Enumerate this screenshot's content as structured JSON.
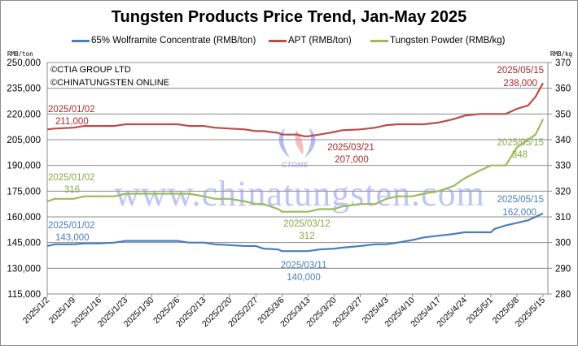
{
  "chart_data": {
    "type": "line",
    "title": "Tungsten Products Price Trend, Jan-May 2025",
    "xlabel": "",
    "ylabel_left": "RMB/ton",
    "ylabel_right": "RMB/kg",
    "ylim_left": [
      115000,
      250000
    ],
    "ylim_right": [
      280,
      370
    ],
    "yticks_left": [
      "115,000",
      "130,000",
      "145,000",
      "160,000",
      "175,000",
      "190,000",
      "205,000",
      "220,000",
      "235,000",
      "250,000"
    ],
    "yticks_right": [
      "280",
      "290",
      "300",
      "310",
      "320",
      "330",
      "340",
      "350",
      "360",
      "370"
    ],
    "grid": true,
    "legend_position": "top",
    "categories": [
      "2025/1/2",
      "2025/1/9",
      "2025/1/16",
      "2025/1/23",
      "2025/1/30",
      "2025/2/6",
      "2025/2/13",
      "2025/2/20",
      "2025/2/27",
      "2025/3/6",
      "2025/3/13",
      "2025/3/20",
      "2025/3/27",
      "2025/4/3",
      "2025/4/10",
      "2025/4/17",
      "2025/4/24",
      "2025/5/1",
      "2025/5/8",
      "2025/5/15"
    ],
    "series": [
      {
        "name": "65% Wolframite Concentrate (RMB/ton)",
        "axis": "left",
        "color": "#4a7ebb",
        "x_days": [
          0,
          2,
          7,
          10,
          14,
          18,
          21,
          28,
          35,
          38,
          42,
          45,
          49,
          53,
          56,
          58,
          62,
          63,
          67,
          69,
          70,
          73,
          77,
          79,
          84,
          88,
          91,
          94,
          98,
          101,
          105,
          109,
          112,
          116,
          119,
          120,
          123,
          126,
          129,
          131,
          133
        ],
        "values": [
          143000,
          144000,
          144000,
          144500,
          144500,
          145000,
          146000,
          146000,
          146000,
          145000,
          145000,
          144000,
          143500,
          143000,
          143000,
          141500,
          141000,
          140000,
          140000,
          140000,
          140000,
          141000,
          141500,
          142000,
          143000,
          144000,
          144000,
          145000,
          146500,
          148000,
          149000,
          150000,
          151000,
          151000,
          151000,
          153000,
          155000,
          156500,
          158000,
          160000,
          162000
        ],
        "annotations": [
          {
            "date": "2025/01/02",
            "value": "143,000"
          },
          {
            "date": "2025/03/11",
            "value": "140,000"
          },
          {
            "date": "2025/05/15",
            "value": "162,000"
          }
        ]
      },
      {
        "name": "APT (RMB/ton)",
        "axis": "left",
        "color": "#be4b48",
        "x_days": [
          0,
          2,
          7,
          10,
          14,
          18,
          21,
          28,
          35,
          38,
          42,
          45,
          49,
          53,
          56,
          58,
          62,
          63,
          67,
          69,
          70,
          73,
          77,
          79,
          84,
          88,
          91,
          94,
          98,
          101,
          105,
          109,
          112,
          116,
          119,
          120,
          123,
          126,
          129,
          131,
          133
        ],
        "values": [
          211000,
          211500,
          212000,
          213000,
          213000,
          213000,
          214000,
          214000,
          214000,
          213000,
          213000,
          212000,
          211500,
          211000,
          210000,
          210000,
          209000,
          208000,
          208000,
          207000,
          207000,
          208000,
          209500,
          210500,
          211000,
          212000,
          213500,
          214000,
          214000,
          214000,
          215000,
          217000,
          219000,
          220000,
          220000,
          220000,
          220000,
          223000,
          225000,
          230000,
          238000
        ],
        "annotations": [
          {
            "date": "2025/01/02",
            "value": "211,000"
          },
          {
            "date": "2025/03/21",
            "value": "207,000"
          },
          {
            "date": "2025/05/15",
            "value": "238,000"
          }
        ]
      },
      {
        "name": "Tungsten Powder (RMB/kg)",
        "axis": "right",
        "color": "#9bbb59",
        "x_days": [
          0,
          2,
          7,
          10,
          14,
          18,
          21,
          28,
          35,
          38,
          42,
          45,
          49,
          53,
          56,
          58,
          62,
          63,
          67,
          69,
          70,
          73,
          77,
          79,
          84,
          88,
          91,
          94,
          98,
          101,
          105,
          109,
          112,
          116,
          119,
          120,
          123,
          126,
          129,
          131,
          133
        ],
        "values": [
          316,
          317,
          317,
          318,
          318,
          318,
          319,
          319,
          319,
          319,
          318,
          317,
          317,
          316,
          315,
          315,
          313,
          312,
          312,
          312,
          312,
          313,
          313,
          314,
          315,
          315,
          317,
          318,
          318,
          319,
          320,
          322,
          325,
          328,
          330,
          330,
          330,
          337,
          340,
          342,
          348
        ],
        "annotations": [
          {
            "date": "2025/01/02",
            "value": "316"
          },
          {
            "date": "2025/03/12",
            "value": "312"
          },
          {
            "date": "2025/05/15",
            "value": "348"
          }
        ]
      }
    ]
  },
  "legend": {
    "items": [
      {
        "label": "65% Wolframite Concentrate (RMB/ton)",
        "color": "#4a7ebb"
      },
      {
        "label": "APT (RMB/ton)",
        "color": "#be4b48"
      },
      {
        "label": "Tungsten Powder (RMB/kg)",
        "color": "#9bbb59"
      }
    ]
  },
  "copyright": {
    "line1": "©CTIA GROUP LTD",
    "line2": "©CHINATUNGSTEN ONLINE"
  },
  "watermark": {
    "url": "www.chinatungsten.com",
    "logo_text": "CTOMS"
  },
  "labels": {
    "wolf_start_date": "2025/01/02",
    "wolf_start_val": "143,000",
    "wolf_low_date": "2025/03/11",
    "wolf_low_val": "140,000",
    "wolf_end_date": "2025/05/15",
    "wolf_end_val": "162,000",
    "apt_start_date": "2025/01/02",
    "apt_start_val": "211,000",
    "apt_low_date": "2025/03/21",
    "apt_low_val": "207,000",
    "apt_end_date": "2025/05/15",
    "apt_end_val": "238,000",
    "pow_start_date": "2025/01/02",
    "pow_start_val": "316",
    "pow_low_date": "2025/03/12",
    "pow_low_val": "312",
    "pow_end_date": "2025/05/15",
    "pow_end_val": "348"
  }
}
